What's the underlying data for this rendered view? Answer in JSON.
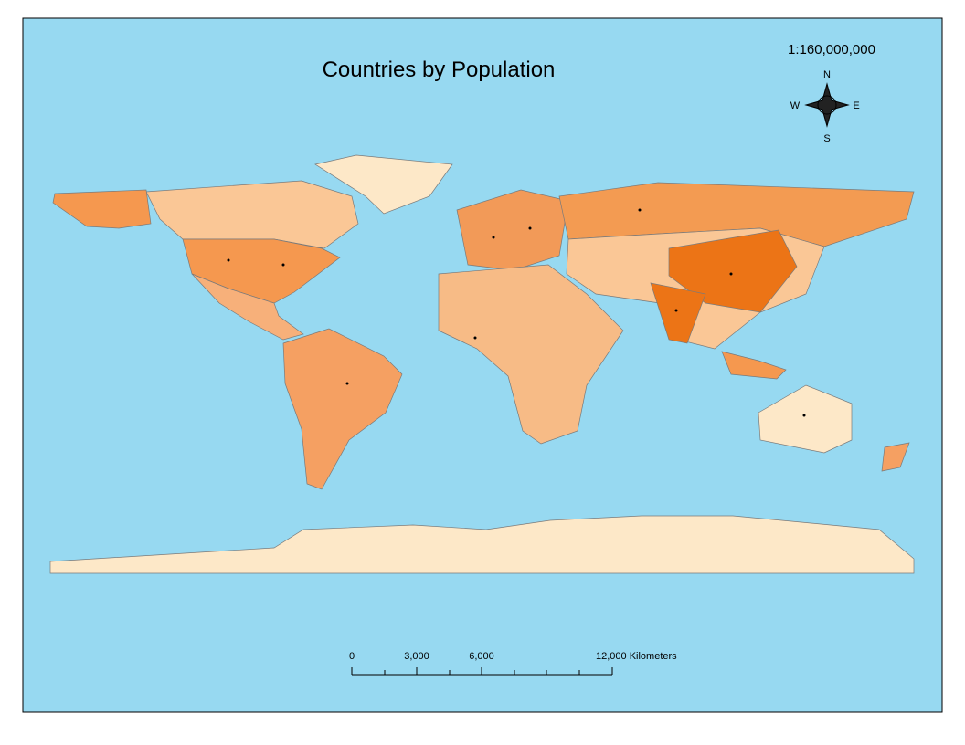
{
  "title": "Countries by Population",
  "scale_text": "1:160,000,000",
  "compass": {
    "north": "N",
    "south": "S",
    "east": "E",
    "west": "W"
  },
  "scale_bar": {
    "labels": [
      "0",
      "3,000",
      "6,000",
      "12,000 Kilometers"
    ]
  }
}
